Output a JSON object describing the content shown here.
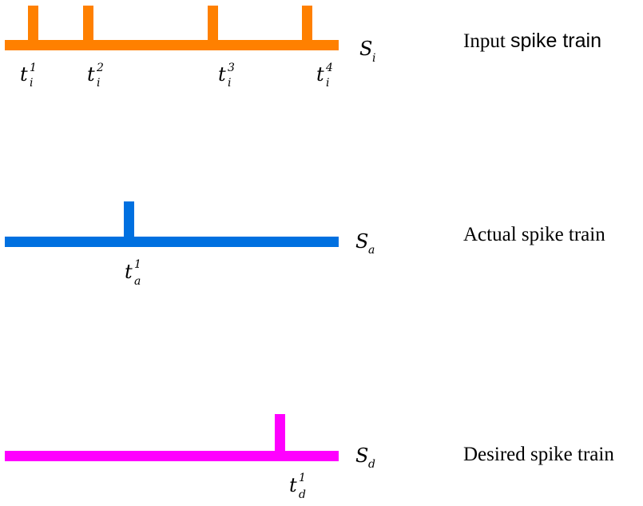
{
  "trains": [
    {
      "key": "input",
      "color": "#ff8000",
      "label_main": "S",
      "label_sub": "i",
      "description_a": "Input ",
      "description_b": "spike train",
      "spikes": [
        {
          "t": "t",
          "sub": "i",
          "sup": "1"
        },
        {
          "t": "t",
          "sub": "i",
          "sup": "2"
        },
        {
          "t": "t",
          "sub": "i",
          "sup": "3"
        },
        {
          "t": "t",
          "sub": "i",
          "sup": "4"
        }
      ]
    },
    {
      "key": "actual",
      "color": "#0070e0",
      "label_main": "S",
      "label_sub": "a",
      "description_a": "Actual spike train",
      "description_b": "",
      "spikes": [
        {
          "t": "t",
          "sub": "a",
          "sup": "1"
        }
      ]
    },
    {
      "key": "desired",
      "color": "#ff00ff",
      "label_main": "S",
      "label_sub": "d",
      "description_a": "Desired spike train",
      "description_b": "",
      "spikes": [
        {
          "t": "t",
          "sub": "d",
          "sup": "1"
        }
      ]
    }
  ]
}
